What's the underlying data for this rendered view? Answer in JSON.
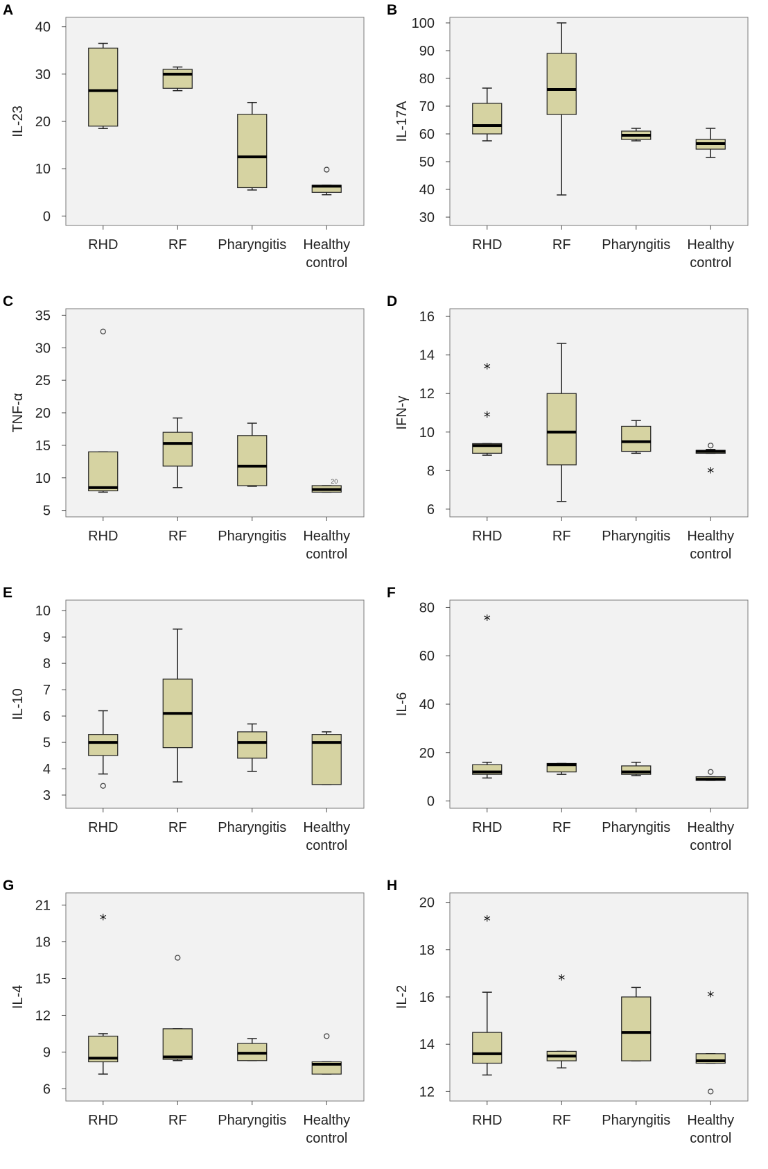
{
  "chart_data": [
    {
      "panel": "A",
      "type": "box",
      "ylabel": "IL-23",
      "ylim": [
        -2,
        42
      ],
      "yticks": [
        0,
        10,
        20,
        30,
        40
      ],
      "categories": [
        "RHD",
        "RF",
        "Pharyngitis",
        "Healthy control"
      ],
      "series": [
        {
          "name": "RHD",
          "min": 18.5,
          "q1": 19,
          "median": 26.5,
          "q3": 35.5,
          "max": 36.5,
          "outliers": []
        },
        {
          "name": "RF",
          "min": 26.5,
          "q1": 27,
          "median": 30,
          "q3": 31,
          "max": 31.5,
          "outliers": []
        },
        {
          "name": "Pharyngitis",
          "min": 5.5,
          "q1": 6,
          "median": 12.5,
          "q3": 21.5,
          "max": 24,
          "outliers": []
        },
        {
          "name": "Healthy control",
          "min": 4.5,
          "q1": 5,
          "median": 6.3,
          "q3": 6.5,
          "max": 6.5,
          "outliers": [
            {
              "value": 9.8,
              "marker": "o"
            }
          ]
        }
      ]
    },
    {
      "panel": "B",
      "type": "box",
      "ylabel": "IL-17A",
      "ylim": [
        27,
        102
      ],
      "yticks": [
        30,
        40,
        50,
        60,
        70,
        80,
        90,
        100
      ],
      "categories": [
        "RHD",
        "RF",
        "Pharyngitis",
        "Healthy control"
      ],
      "series": [
        {
          "name": "RHD",
          "min": 57.5,
          "q1": 60,
          "median": 63,
          "q3": 71,
          "max": 76.5,
          "outliers": []
        },
        {
          "name": "RF",
          "min": 38,
          "q1": 67,
          "median": 76,
          "q3": 89,
          "max": 100,
          "outliers": []
        },
        {
          "name": "Pharyngitis",
          "min": 57.5,
          "q1": 58,
          "median": 59.5,
          "q3": 61,
          "max": 62,
          "outliers": []
        },
        {
          "name": "Healthy control",
          "min": 51.5,
          "q1": 54.5,
          "median": 56.5,
          "q3": 58,
          "max": 62,
          "outliers": []
        }
      ]
    },
    {
      "panel": "C",
      "type": "box",
      "ylabel": "TNF-α",
      "ylim": [
        4,
        36
      ],
      "yticks": [
        5,
        10,
        15,
        20,
        25,
        30,
        35
      ],
      "categories": [
        "RHD",
        "RF",
        "Pharyngitis",
        "Healthy control"
      ],
      "series": [
        {
          "name": "RHD",
          "min": 7.8,
          "q1": 8,
          "median": 8.5,
          "q3": 14,
          "max": 14,
          "outliers": [
            {
              "value": 32.5,
              "marker": "o"
            }
          ]
        },
        {
          "name": "RF",
          "min": 8.5,
          "q1": 11.8,
          "median": 15.3,
          "q3": 17,
          "max": 19.2,
          "outliers": []
        },
        {
          "name": "Pharyngitis",
          "min": 8.7,
          "q1": 8.8,
          "median": 11.8,
          "q3": 16.5,
          "max": 18.4,
          "outliers": []
        },
        {
          "name": "Healthy control",
          "min": 7.8,
          "q1": 7.8,
          "median": 8.2,
          "q3": 8.8,
          "max": 8.8,
          "outliers": [],
          "note": "20"
        }
      ]
    },
    {
      "panel": "D",
      "type": "box",
      "ylabel": "IFN-γ",
      "ylim": [
        5.6,
        16.4
      ],
      "yticks": [
        6,
        8,
        10,
        12,
        14,
        16
      ],
      "categories": [
        "RHD",
        "RF",
        "Pharyngitis",
        "Healthy control"
      ],
      "series": [
        {
          "name": "RHD",
          "min": 8.8,
          "q1": 8.9,
          "median": 9.3,
          "q3": 9.4,
          "max": 9.4,
          "outliers": [
            {
              "value": 13.4,
              "marker": "*"
            },
            {
              "value": 10.9,
              "marker": "*"
            }
          ]
        },
        {
          "name": "RF",
          "min": 6.4,
          "q1": 8.3,
          "median": 10,
          "q3": 12,
          "max": 14.6,
          "outliers": []
        },
        {
          "name": "Pharyngitis",
          "min": 8.9,
          "q1": 9,
          "median": 9.5,
          "q3": 10.3,
          "max": 10.6,
          "outliers": []
        },
        {
          "name": "Healthy control",
          "min": 8.9,
          "q1": 8.9,
          "median": 9,
          "q3": 9.05,
          "max": 9.1,
          "outliers": [
            {
              "value": 9.3,
              "marker": "o"
            },
            {
              "value": 8.0,
              "marker": "*"
            }
          ]
        }
      ]
    },
    {
      "panel": "E",
      "type": "box",
      "ylabel": "IL-10",
      "ylim": [
        2.5,
        10.4
      ],
      "yticks": [
        3,
        4,
        5,
        6,
        7,
        8,
        9,
        10
      ],
      "categories": [
        "RHD",
        "RF",
        "Pharyngitis",
        "Healthy control"
      ],
      "series": [
        {
          "name": "RHD",
          "min": 3.8,
          "q1": 4.5,
          "median": 5,
          "q3": 5.3,
          "max": 6.2,
          "outliers": [
            {
              "value": 3.35,
              "marker": "o"
            }
          ]
        },
        {
          "name": "RF",
          "min": 3.5,
          "q1": 4.8,
          "median": 6.1,
          "q3": 7.4,
          "max": 9.3,
          "outliers": []
        },
        {
          "name": "Pharyngitis",
          "min": 3.9,
          "q1": 4.4,
          "median": 5,
          "q3": 5.4,
          "max": 5.7,
          "outliers": []
        },
        {
          "name": "Healthy control",
          "min": 3.4,
          "q1": 3.4,
          "median": 5,
          "q3": 5.3,
          "max": 5.4,
          "outliers": []
        }
      ]
    },
    {
      "panel": "F",
      "type": "box",
      "ylabel": "IL-6",
      "ylim": [
        -3,
        83
      ],
      "yticks": [
        0,
        20,
        40,
        60,
        80
      ],
      "categories": [
        "RHD",
        "RF",
        "Pharyngitis",
        "Healthy control"
      ],
      "series": [
        {
          "name": "RHD",
          "min": 9.5,
          "q1": 11,
          "median": 12,
          "q3": 15,
          "max": 16,
          "outliers": [
            {
              "value": 75.5,
              "marker": "*"
            }
          ]
        },
        {
          "name": "RF",
          "min": 11,
          "q1": 12,
          "median": 15,
          "q3": 15.5,
          "max": 15.5,
          "outliers": []
        },
        {
          "name": "Pharyngitis",
          "min": 10.5,
          "q1": 11,
          "median": 12,
          "q3": 14.5,
          "max": 16,
          "outliers": []
        },
        {
          "name": "Healthy control",
          "min": 8.5,
          "q1": 8.5,
          "median": 9,
          "q3": 10,
          "max": 10,
          "outliers": [
            {
              "value": 12,
              "marker": "o"
            }
          ]
        }
      ]
    },
    {
      "panel": "G",
      "type": "box",
      "ylabel": "IL-4",
      "ylim": [
        5,
        22
      ],
      "yticks": [
        6,
        9,
        12,
        15,
        18,
        21
      ],
      "categories": [
        "RHD",
        "RF",
        "Pharyngitis",
        "Healthy control"
      ],
      "series": [
        {
          "name": "RHD",
          "min": 7.2,
          "q1": 8.2,
          "median": 8.5,
          "q3": 10.3,
          "max": 10.5,
          "outliers": [
            {
              "value": 20,
              "marker": "*"
            }
          ]
        },
        {
          "name": "RF",
          "min": 8.3,
          "q1": 8.4,
          "median": 8.6,
          "q3": 10.9,
          "max": 10.9,
          "outliers": [
            {
              "value": 16.7,
              "marker": "o"
            }
          ]
        },
        {
          "name": "Pharyngitis",
          "min": 8.3,
          "q1": 8.3,
          "median": 8.9,
          "q3": 9.7,
          "max": 10.1,
          "outliers": []
        },
        {
          "name": "Healthy control",
          "min": 7.2,
          "q1": 7.2,
          "median": 8,
          "q3": 8.2,
          "max": 8.2,
          "outliers": [
            {
              "value": 10.3,
              "marker": "o"
            }
          ]
        }
      ]
    },
    {
      "panel": "H",
      "type": "box",
      "ylabel": "IL-2",
      "ylim": [
        11.6,
        20.4
      ],
      "yticks": [
        12,
        14,
        16,
        18,
        20
      ],
      "categories": [
        "RHD",
        "RF",
        "Pharyngitis",
        "Healthy control"
      ],
      "series": [
        {
          "name": "RHD",
          "min": 12.7,
          "q1": 13.2,
          "median": 13.6,
          "q3": 14.5,
          "max": 16.2,
          "outliers": [
            {
              "value": 19.3,
              "marker": "*"
            }
          ]
        },
        {
          "name": "RF",
          "min": 13,
          "q1": 13.3,
          "median": 13.5,
          "q3": 13.7,
          "max": 13.7,
          "outliers": [
            {
              "value": 16.8,
              "marker": "*"
            }
          ]
        },
        {
          "name": "Pharyngitis",
          "min": 13.3,
          "q1": 13.3,
          "median": 14.5,
          "q3": 16,
          "max": 16.4,
          "outliers": []
        },
        {
          "name": "Healthy control",
          "min": 13.2,
          "q1": 13.2,
          "median": 13.3,
          "q3": 13.6,
          "max": 13.6,
          "outliers": [
            {
              "value": 16.1,
              "marker": "*"
            },
            {
              "value": 12,
              "marker": "o"
            }
          ]
        }
      ]
    }
  ]
}
